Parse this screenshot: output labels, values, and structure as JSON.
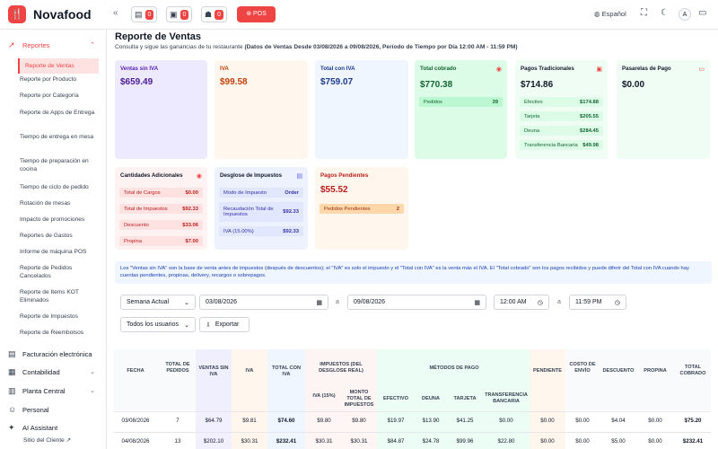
{
  "topbar": {
    "brand": "Novafood",
    "orders": [
      "0",
      "0",
      "0"
    ],
    "pos_label": "POS",
    "language": "Español",
    "avatar": "A"
  },
  "sidebar": {
    "reports_label": "Reportes",
    "items": [
      "Reporte de Ventas",
      "Reporte por Producto",
      "Reporte por Categoría",
      "Reporte de Apps de Entrega",
      "Tiempo de entrega en mesa",
      "Tiempo de preparación en cocina",
      "Tiempo de ciclo de pedido",
      "Rotación de mesas",
      "Impacto de promociones",
      "Reportes de Gastos",
      "Informe de máquina POS",
      "Reporte de Pedidos Cancelados",
      "Reporte de Items KOT Eliminados",
      "Reporte de Impuestos",
      "Reporte de Reembolsos"
    ],
    "sections": [
      "Facturación electrónica",
      "Contabilidad",
      "Planta Central",
      "Personal",
      "AI Assistant"
    ],
    "footer_link": "Sitio del Cliente"
  },
  "page": {
    "title": "Reporte de Ventas",
    "subtitle_prefix": "Consulta y sigue las ganancias de tu restaurante",
    "subtitle_bold": "(Datos de Ventas Desde 03/08/2026 a 09/08/2026, Período de Tiempo por Día 12:00 AM - 11:59 PM)"
  },
  "cards": {
    "ventas": {
      "label": "Ventas sin IVA",
      "value": "$659.49"
    },
    "iva": {
      "label": "IVA",
      "value": "$99.58"
    },
    "total": {
      "label": "Total con IVA",
      "value": "$759.07"
    },
    "cobrado": {
      "label": "Total cobrado",
      "value": "$770.38",
      "row_label": "Pedidos",
      "row_value": "39"
    },
    "tradicionales": {
      "label": "Pagos Tradicionales",
      "value": "$714.86",
      "rows": [
        {
          "k": "Efectivo",
          "v": "$174.88"
        },
        {
          "k": "Tarjeta",
          "v": "$205.55"
        },
        {
          "k": "Deuna",
          "v": "$284.45"
        },
        {
          "k": "Transferencia Bancaria",
          "v": "$49.98"
        }
      ]
    },
    "pasarelas": {
      "label": "Pasarelas de Pago",
      "value": "$0.00"
    },
    "adicionales": {
      "label": "Cantidades Adicionales",
      "rows": [
        {
          "k": "Total de Cargos",
          "v": "$0.00"
        },
        {
          "k": "Total de Impuestos",
          "v": "$92.33"
        },
        {
          "k": "Descuento",
          "v": "$33.06"
        },
        {
          "k": "Propina",
          "v": "$7.00"
        }
      ]
    },
    "desglose": {
      "label": "Desglose de Impuestos",
      "rows": [
        {
          "k": "Modo de Impuesto",
          "v": "Order"
        },
        {
          "k": "Recaudación Total de Impuestos",
          "v": "$92.33"
        },
        {
          "k": "IVA (15.00%)",
          "v": "$92.33"
        }
      ]
    },
    "pendientes": {
      "label": "Pagos Pendientes",
      "value": "$55.52",
      "row_label": "Pedidos Pendientes",
      "row_value": "2"
    }
  },
  "info_text": "Los \"Ventas sin IVA\" son la base de venta antes de impuestos (después de descuentos); el \"IVA\" es solo el impuesto y el \"Total con IVA\" es la venta más el IVA. El \"Total cobrado\" son los pagos recibidos y puede diferir del Total con IVA cuando hay cuentas pendientes, propinas, delivery, recargos o sobrepagos.",
  "filters": {
    "period": "Semana Actual",
    "date_from": "03/08/2026",
    "sep1": "a",
    "date_to": "09/08/2026",
    "time_from": "12:00 AM",
    "sep2": "a",
    "time_to": "11:59 PM",
    "users": "Todos los usuarios",
    "export": "Exportar"
  },
  "table": {
    "headers": {
      "fecha": "FECHA",
      "pedidos": "TOTAL DE PEDIDOS",
      "ventas": "VENTAS SIN IVA",
      "iva": "IVA",
      "total": "TOTAL CON IVA",
      "impuestos": "IMPUESTOS (DEL DESGLOSE REAL)",
      "metodos": "MÉTODOS DE PAGO",
      "pendiente": "PENDIENTE",
      "envio": "COSTO DE ENVÍO",
      "descuento": "DESCUENTO",
      "propina": "PROPINA",
      "cobrado": "TOTAL COBRADO",
      "iva15": "IVA (15%)",
      "monto": "MONTO TOTAL DE IMPUESTOS",
      "efectivo": "EFECTIVO",
      "deuna": "DEUNA",
      "tarjeta": "TARJETA",
      "transferencia": "TRANSFERENCIA BANCARIA"
    },
    "rows": [
      [
        "03/08/2026",
        "7",
        "$64.79",
        "$9.81",
        "$74.60",
        "$9.80",
        "$9.80",
        "$19.97",
        "$13.90",
        "$41.25",
        "$0.00",
        "$0.00",
        "$0.00",
        "$4.04",
        "$0.00",
        "$75.20"
      ],
      [
        "04/08/2026",
        "13",
        "$202.10",
        "$30.31",
        "$232.41",
        "$30.31",
        "$30.31",
        "$84.87",
        "$24.78",
        "$99.96",
        "$22.80",
        "$0.00",
        "$0.00",
        "$5.00",
        "$0.00",
        "$232.41"
      ]
    ]
  }
}
